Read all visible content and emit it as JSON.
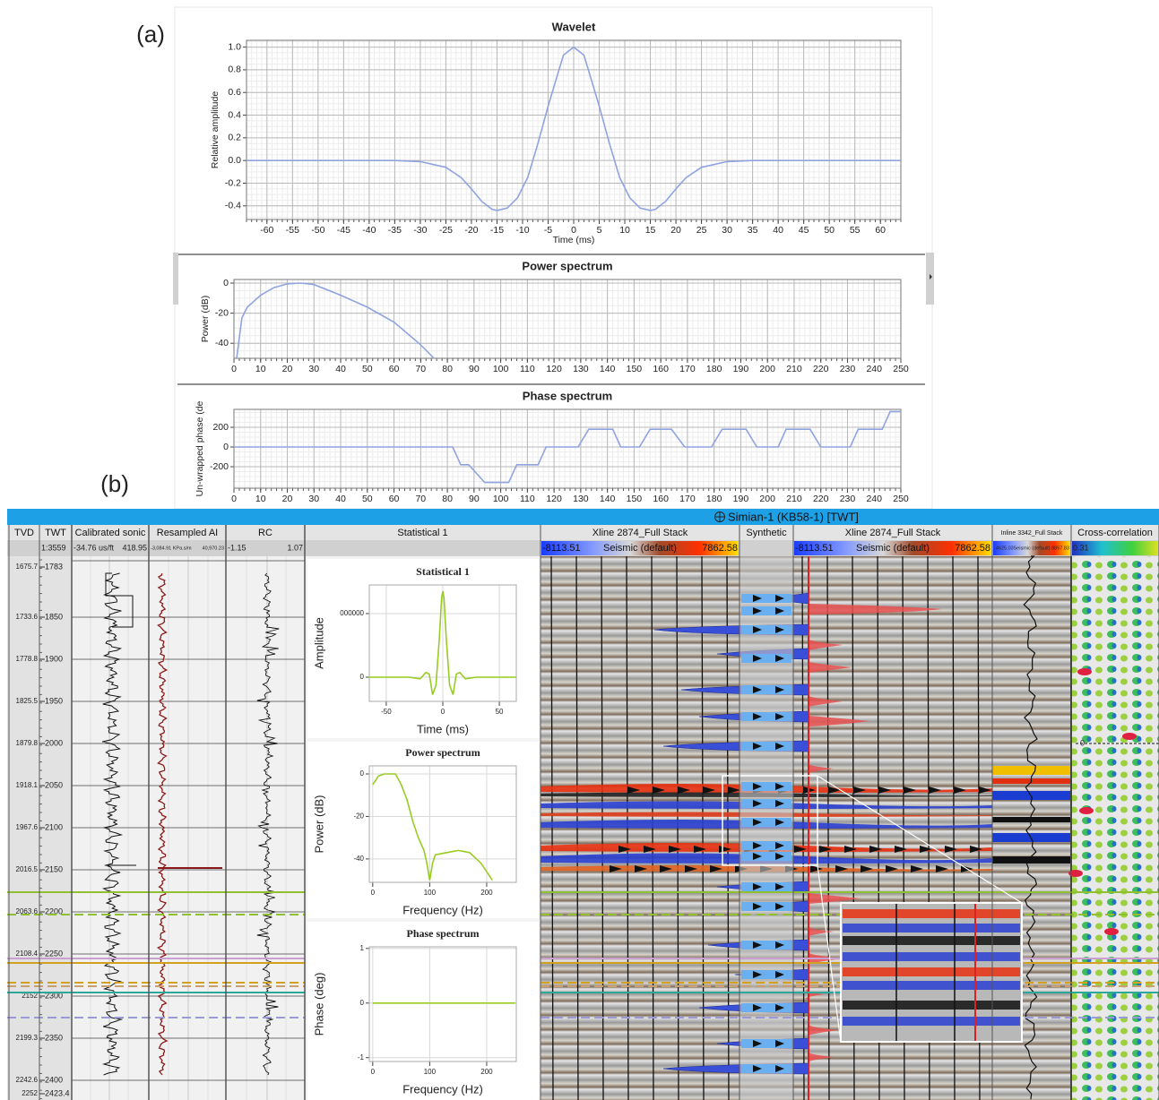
{
  "panel_labels": [
    "(a)",
    "(b)"
  ],
  "chart_data": [
    {
      "type": "line",
      "title": "Wavelet",
      "x_label": "Time (ms)",
      "y_label": "Relative amplitude",
      "x": [
        -64,
        -35,
        -30,
        -25,
        -22,
        -20,
        -18,
        -16,
        -15,
        -13,
        -11,
        -9,
        -7,
        -5,
        -3,
        -2,
        0,
        2,
        3,
        5,
        7,
        9,
        11,
        13,
        15,
        16,
        18,
        20,
        22,
        25,
        30,
        35,
        64
      ],
      "values": [
        0,
        0,
        -0.01,
        -0.06,
        -0.15,
        -0.25,
        -0.36,
        -0.43,
        -0.44,
        -0.42,
        -0.33,
        -0.15,
        0.15,
        0.48,
        0.78,
        0.93,
        1,
        0.93,
        0.78,
        0.48,
        0.15,
        -0.15,
        -0.33,
        -0.42,
        -0.44,
        -0.43,
        -0.36,
        -0.25,
        -0.15,
        -0.06,
        -0.01,
        0,
        0
      ],
      "color": "#8fa3e0",
      "xlim": [
        -64,
        64
      ],
      "ylim": [
        -0.52,
        1.06
      ],
      "xticks": [
        -60,
        -55,
        -50,
        -45,
        -40,
        -35,
        -30,
        -25,
        -20,
        -15,
        -10,
        -5,
        0,
        5,
        10,
        15,
        20,
        25,
        30,
        35,
        40,
        45,
        50,
        55,
        60
      ],
      "yticks": [
        {
          "value": 1,
          "label": "1.0"
        },
        0.8,
        0.6,
        0.4,
        0.2,
        {
          "value": 0,
          "label": "0.0"
        },
        -0.2,
        -0.4
      ],
      "grid": true
    },
    {
      "type": "line",
      "title": "Power spectrum",
      "y_label": "Power (dB)",
      "x": [
        1,
        3,
        5,
        10,
        15,
        20,
        25,
        30,
        40,
        50,
        60,
        70,
        75
      ],
      "values": [
        -50,
        -23,
        -16,
        -8,
        -3,
        -0.5,
        0,
        -1,
        -8,
        -16,
        -26,
        -41,
        -50
      ],
      "color": "#8fa3e0",
      "xlim": [
        0,
        250
      ],
      "ylim": [
        -50,
        2.4
      ],
      "xticks": [
        0,
        10,
        20,
        30,
        40,
        50,
        60,
        70,
        80,
        90,
        100,
        110,
        120,
        130,
        140,
        150,
        160,
        170,
        180,
        190,
        200,
        210,
        220,
        230,
        240,
        250
      ],
      "yticks": [
        0,
        -20,
        -40
      ],
      "grid": true
    },
    {
      "type": "line",
      "title": "Phase spectrum",
      "y_label": "Un-wrapped phase (de",
      "x": [
        0,
        82,
        85,
        88,
        94,
        103,
        106,
        114,
        117,
        129,
        133,
        142,
        145,
        152,
        156,
        164,
        169,
        179,
        183,
        192,
        196,
        204,
        207,
        216,
        220,
        231,
        234,
        243,
        246,
        250
      ],
      "values": [
        0,
        0,
        -180,
        -180,
        -360,
        -360,
        -180,
        -180,
        0,
        0,
        180,
        180,
        0,
        0,
        180,
        180,
        0,
        0,
        180,
        180,
        0,
        0,
        180,
        180,
        0,
        0,
        180,
        180,
        360,
        360
      ],
      "color": "#8fa3e0",
      "xlim": [
        0,
        250
      ],
      "ylim": [
        -418,
        382
      ],
      "xticks": [
        0,
        10,
        20,
        30,
        40,
        50,
        60,
        70,
        80,
        90,
        100,
        110,
        120,
        130,
        140,
        150,
        160,
        170,
        180,
        190,
        200,
        210,
        220,
        230,
        240,
        250
      ],
      "yticks": [
        200,
        0,
        -200
      ],
      "grid": true
    },
    {
      "type": "line",
      "title": "Statistical 1",
      "x_label": "Time (ms)",
      "y_label": "Amplitude",
      "x": [
        -65,
        -30,
        -20,
        -15,
        -12,
        -9,
        -6,
        -3,
        -1,
        0,
        1,
        3,
        6,
        9,
        12,
        15,
        20,
        30,
        65
      ],
      "values": [
        0,
        0,
        -100000,
        300000,
        200000,
        -1100000,
        -500000,
        2500000,
        5000000,
        5400000,
        5000000,
        2500000,
        -500000,
        -1100000,
        200000,
        300000,
        -100000,
        0,
        0
      ],
      "color": "#99cc22",
      "xlim": [
        -65,
        65
      ],
      "ylim": [
        -1520000,
        5800000
      ],
      "xticks": [
        -50,
        0,
        50
      ],
      "yticks": [
        {
          "value": 4000000,
          "label": "000000"
        },
        0
      ],
      "grid": true
    },
    {
      "type": "line",
      "title": "Power spectrum",
      "x_label": "Frequency (Hz)",
      "y_label": "Power (dB)",
      "x": [
        0,
        10,
        20,
        40,
        50,
        60,
        70,
        80,
        90,
        95,
        100,
        105,
        110,
        130,
        150,
        170,
        190,
        210
      ],
      "values": [
        -5,
        -1,
        0,
        0,
        -5,
        -12,
        -22,
        -30,
        -36,
        -42,
        -50,
        -42,
        -38,
        -37,
        -36,
        -37,
        -42,
        -50
      ],
      "color": "#99cc22",
      "xlim": [
        -6,
        252
      ],
      "ylim": [
        -51,
        3.8
      ],
      "xticks": [
        0,
        100,
        200
      ],
      "yticks": [
        0,
        -20,
        -40
      ],
      "grid": true
    },
    {
      "type": "line",
      "title": "Phase spectrum",
      "x_label": "Frequency (Hz)",
      "y_label": "Phase (deg)",
      "x": [
        0,
        250
      ],
      "values": [
        0,
        0
      ],
      "color": "#99cc22",
      "xlim": [
        -6,
        252
      ],
      "ylim": [
        -1.07,
        1.03
      ],
      "xticks": [
        0,
        100,
        200
      ],
      "yticks": [
        1,
        0,
        -1
      ],
      "grid": true
    }
  ],
  "well_view": {
    "title": "Simian-1 (KB58-1) [TWT]",
    "columns": [
      {
        "title": "TVD"
      },
      {
        "title": "TWT",
        "scale": [
          "1:3559"
        ]
      },
      {
        "title": "Calibrated sonic",
        "scale": [
          "-34.76 us/ft",
          "418.95"
        ]
      },
      {
        "title": "Resampled AI",
        "scale": [
          "-3,084.91 KPa.s/m",
          "40,970.23"
        ]
      },
      {
        "title": "RC",
        "scale": [
          "-1.15",
          "1.07"
        ]
      },
      {
        "title": "Statistical 1"
      },
      {
        "title": "Xline 2874_Full Stack",
        "scale": [
          "-8113.51",
          "Seismic (default)",
          "7862.58"
        ]
      },
      {
        "title": "Synthetic"
      },
      {
        "title": "Xline 2874_Full Stack",
        "scale": [
          "-8113.51",
          "Seismic (default)",
          "7862.58"
        ]
      },
      {
        "title": "Inline 3342_Full Stack",
        "scale": [
          "-4625.03",
          "Seismic (default)",
          "8857.83"
        ]
      },
      {
        "title": "Cross-correlation",
        "scale": [
          "0.31"
        ]
      }
    ],
    "depth": {
      "twt": [
        1783,
        1850,
        1900,
        1950,
        2000,
        2050,
        2100,
        2150,
        2200,
        2250,
        2300,
        2350,
        2400,
        2423.4
      ],
      "tvd": [
        1675.7,
        1733.6,
        1778.8,
        1825.5,
        1879.8,
        1918.1,
        1967.6,
        2016.5,
        2063.6,
        2108.4,
        2152,
        2199.3,
        2242.6,
        2252
      ]
    },
    "correlation_zero": 0
  }
}
